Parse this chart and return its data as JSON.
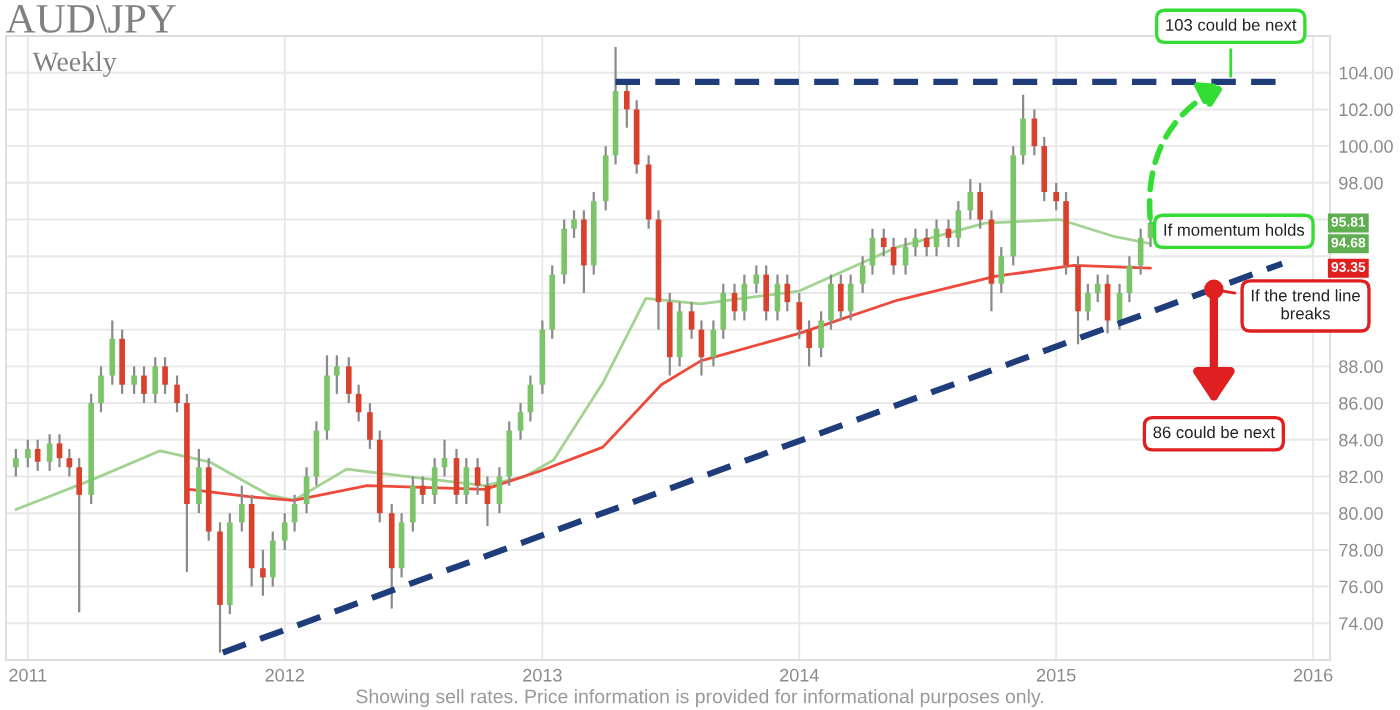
{
  "chart_data": {
    "type": "candlestick",
    "title": "AUD\\JPY",
    "subtitle": "Weekly",
    "x": [
      "2010-12-15",
      "2011-01-01",
      "2011-01-15",
      "2011-02-01",
      "2011-02-15",
      "2011-03-01",
      "2011-03-15",
      "2011-04-01",
      "2011-04-15",
      "2011-05-01",
      "2011-05-15",
      "2011-06-01",
      "2011-06-15",
      "2011-07-01",
      "2011-07-15",
      "2011-08-01",
      "2011-08-15",
      "2011-09-01",
      "2011-09-15",
      "2011-10-01",
      "2011-10-15",
      "2011-11-01",
      "2011-11-15",
      "2011-12-01",
      "2011-12-15",
      "2012-01-01",
      "2012-01-15",
      "2012-02-01",
      "2012-02-15",
      "2012-03-01",
      "2012-03-15",
      "2012-04-01",
      "2012-04-15",
      "2012-05-01",
      "2012-05-15",
      "2012-06-01",
      "2012-06-15",
      "2012-07-01",
      "2012-07-15",
      "2012-08-01",
      "2012-08-15",
      "2012-09-01",
      "2012-09-15",
      "2012-10-01",
      "2012-10-15",
      "2012-11-01",
      "2012-11-15",
      "2012-12-01",
      "2012-12-15",
      "2013-01-01",
      "2013-01-15",
      "2013-02-01",
      "2013-02-15",
      "2013-03-01",
      "2013-03-15",
      "2013-04-01",
      "2013-04-15",
      "2013-05-01",
      "2013-05-15",
      "2013-06-01",
      "2013-06-15",
      "2013-07-01",
      "2013-07-15",
      "2013-08-01",
      "2013-08-15",
      "2013-09-01",
      "2013-09-15",
      "2013-10-01",
      "2013-10-15",
      "2013-11-01",
      "2013-11-15",
      "2013-12-01",
      "2013-12-15",
      "2014-01-01",
      "2014-01-15",
      "2014-02-01",
      "2014-02-15",
      "2014-03-01",
      "2014-03-15",
      "2014-04-01",
      "2014-04-15",
      "2014-05-01",
      "2014-05-15",
      "2014-06-01",
      "2014-06-15",
      "2014-07-01",
      "2014-07-15",
      "2014-08-01",
      "2014-08-15",
      "2014-09-01",
      "2014-09-15",
      "2014-10-01",
      "2014-10-15",
      "2014-11-01",
      "2014-11-15",
      "2014-12-01",
      "2014-12-15",
      "2015-01-01",
      "2015-01-15",
      "2015-02-01",
      "2015-02-15",
      "2015-03-01",
      "2015-03-15",
      "2015-04-01",
      "2015-04-15",
      "2015-05-01",
      "2015-05-15"
    ],
    "ohlc": [
      [
        82.5,
        83.5,
        82.0,
        83.0
      ],
      [
        83.0,
        84.0,
        82.5,
        83.5
      ],
      [
        83.5,
        84.0,
        82.3,
        82.8
      ],
      [
        82.8,
        84.3,
        82.3,
        83.8
      ],
      [
        83.8,
        84.3,
        82.5,
        83.0
      ],
      [
        83.0,
        83.5,
        82.0,
        82.5
      ],
      [
        82.5,
        83.0,
        74.6,
        81.0
      ],
      [
        81.0,
        86.5,
        80.5,
        86.0
      ],
      [
        86.0,
        88.0,
        85.5,
        87.5
      ],
      [
        87.5,
        90.5,
        87.0,
        89.5
      ],
      [
        89.5,
        90.0,
        86.5,
        87.0
      ],
      [
        87.0,
        88.0,
        86.5,
        87.5
      ],
      [
        87.5,
        88.0,
        86.0,
        86.5
      ],
      [
        86.5,
        88.5,
        86.0,
        88.0
      ],
      [
        88.0,
        88.5,
        86.5,
        87.0
      ],
      [
        87.0,
        87.5,
        85.5,
        86.0
      ],
      [
        86.0,
        86.5,
        76.8,
        80.5
      ],
      [
        80.5,
        83.5,
        80.0,
        82.5
      ],
      [
        82.5,
        83.0,
        78.5,
        79.0
      ],
      [
        79.0,
        79.5,
        72.4,
        75.0
      ],
      [
        75.0,
        80.0,
        74.5,
        79.5
      ],
      [
        79.5,
        81.5,
        79.0,
        80.5
      ],
      [
        80.5,
        81.0,
        76.0,
        77.0
      ],
      [
        77.0,
        78.0,
        75.5,
        76.5
      ],
      [
        76.5,
        79.0,
        76.0,
        78.5
      ],
      [
        78.5,
        80.0,
        78.0,
        79.5
      ],
      [
        79.5,
        81.0,
        79.0,
        80.5
      ],
      [
        80.5,
        82.5,
        80.0,
        82.0
      ],
      [
        82.0,
        85.0,
        81.5,
        84.5
      ],
      [
        84.5,
        88.6,
        84.0,
        87.5
      ],
      [
        87.5,
        88.6,
        86.5,
        88.0
      ],
      [
        88.0,
        88.5,
        86.0,
        86.5
      ],
      [
        86.5,
        87.0,
        85.0,
        85.5
      ],
      [
        85.5,
        86.0,
        83.5,
        84.0
      ],
      [
        84.0,
        84.5,
        79.5,
        80.0
      ],
      [
        80.0,
        80.5,
        74.8,
        77.0
      ],
      [
        77.0,
        80.0,
        76.5,
        79.5
      ],
      [
        79.5,
        82.0,
        79.0,
        81.5
      ],
      [
        81.5,
        82.0,
        80.5,
        81.0
      ],
      [
        81.0,
        83.0,
        80.5,
        82.5
      ],
      [
        82.5,
        84.0,
        82.0,
        83.0
      ],
      [
        83.0,
        83.5,
        80.5,
        81.0
      ],
      [
        81.0,
        83.0,
        80.5,
        82.5
      ],
      [
        82.5,
        83.0,
        81.0,
        81.5
      ],
      [
        81.5,
        82.0,
        79.3,
        80.5
      ],
      [
        80.5,
        82.5,
        80.0,
        82.0
      ],
      [
        82.0,
        85.0,
        81.5,
        84.5
      ],
      [
        84.5,
        86.0,
        84.0,
        85.5
      ],
      [
        85.5,
        87.5,
        85.0,
        87.0
      ],
      [
        87.0,
        90.5,
        86.5,
        90.0
      ],
      [
        90.0,
        93.5,
        89.5,
        93.0
      ],
      [
        93.0,
        96.0,
        92.5,
        95.5
      ],
      [
        95.5,
        96.5,
        95.0,
        96.0
      ],
      [
        96.0,
        96.5,
        92.0,
        93.5
      ],
      [
        93.5,
        97.5,
        93.0,
        97.0
      ],
      [
        97.0,
        100.0,
        96.5,
        99.5
      ],
      [
        99.5,
        105.4,
        99.0,
        103.0
      ],
      [
        103.0,
        103.5,
        101.0,
        102.0
      ],
      [
        102.0,
        102.5,
        98.5,
        99.0
      ],
      [
        99.0,
        99.5,
        95.5,
        96.0
      ],
      [
        96.0,
        96.5,
        90.0,
        91.5
      ],
      [
        91.5,
        92.0,
        87.5,
        88.5
      ],
      [
        88.5,
        91.5,
        88.0,
        91.0
      ],
      [
        91.0,
        91.5,
        89.5,
        90.0
      ],
      [
        90.0,
        90.5,
        87.5,
        88.5
      ],
      [
        88.5,
        90.5,
        88.0,
        90.0
      ],
      [
        90.0,
        92.5,
        89.5,
        92.0
      ],
      [
        92.0,
        92.5,
        90.5,
        91.0
      ],
      [
        91.0,
        93.0,
        90.5,
        92.5
      ],
      [
        92.5,
        93.5,
        92.0,
        93.0
      ],
      [
        93.0,
        93.5,
        90.5,
        91.0
      ],
      [
        91.0,
        93.0,
        90.5,
        92.5
      ],
      [
        92.5,
        93.0,
        91.0,
        91.5
      ],
      [
        91.5,
        92.0,
        89.5,
        90.0
      ],
      [
        90.0,
        90.5,
        88.0,
        89.0
      ],
      [
        89.0,
        91.0,
        88.5,
        90.5
      ],
      [
        90.5,
        93.0,
        90.0,
        92.5
      ],
      [
        92.5,
        93.0,
        90.5,
        91.0
      ],
      [
        91.0,
        93.0,
        90.5,
        92.5
      ],
      [
        92.5,
        94.0,
        92.0,
        93.5
      ],
      [
        93.5,
        95.5,
        93.0,
        95.0
      ],
      [
        95.0,
        95.5,
        94.0,
        94.5
      ],
      [
        94.5,
        95.0,
        93.0,
        93.5
      ],
      [
        93.5,
        95.0,
        93.0,
        94.5
      ],
      [
        94.5,
        95.5,
        94.0,
        95.0
      ],
      [
        95.0,
        95.5,
        94.0,
        94.5
      ],
      [
        94.5,
        96.0,
        94.0,
        95.5
      ],
      [
        95.5,
        96.0,
        94.5,
        95.0
      ],
      [
        95.0,
        97.0,
        94.5,
        96.5
      ],
      [
        96.5,
        98.2,
        96.0,
        97.5
      ],
      [
        97.5,
        98.0,
        95.5,
        96.0
      ],
      [
        96.0,
        96.5,
        91.0,
        92.5
      ],
      [
        92.5,
        94.5,
        92.0,
        94.0
      ],
      [
        94.0,
        100.0,
        93.5,
        99.5
      ],
      [
        99.5,
        102.8,
        99.0,
        101.5
      ],
      [
        101.5,
        102.0,
        99.5,
        100.0
      ],
      [
        100.0,
        100.5,
        97.0,
        97.5
      ],
      [
        97.5,
        98.0,
        96.5,
        97.0
      ],
      [
        97.0,
        97.5,
        93.0,
        93.5
      ],
      [
        93.5,
        94.0,
        89.2,
        91.0
      ],
      [
        91.0,
        92.5,
        90.5,
        92.0
      ],
      [
        92.0,
        93.0,
        91.5,
        92.5
      ],
      [
        92.5,
        93.0,
        89.8,
        90.5
      ],
      [
        90.5,
        92.5,
        90.0,
        92.0
      ],
      [
        92.0,
        94.0,
        91.5,
        93.5
      ],
      [
        93.5,
        95.5,
        93.0,
        95.0
      ],
      [
        95.0,
        96.0,
        94.5,
        95.81
      ]
    ],
    "colors": [
      "#7cc46a",
      "#7cc46a",
      "#d9412c",
      "#7cc46a",
      "#d9412c",
      "#d9412c",
      "#d9412c",
      "#7cc46a",
      "#7cc46a",
      "#7cc46a",
      "#d9412c",
      "#7cc46a",
      "#d9412c",
      "#7cc46a",
      "#d9412c",
      "#d9412c",
      "#d9412c",
      "#7cc46a",
      "#d9412c",
      "#d9412c",
      "#7cc46a",
      "#7cc46a",
      "#d9412c",
      "#d9412c",
      "#7cc46a",
      "#7cc46a",
      "#7cc46a",
      "#7cc46a",
      "#7cc46a",
      "#7cc46a",
      "#7cc46a",
      "#d9412c",
      "#d9412c",
      "#d9412c",
      "#d9412c",
      "#d9412c",
      "#7cc46a",
      "#7cc46a",
      "#d9412c",
      "#7cc46a",
      "#7cc46a",
      "#d9412c",
      "#7cc46a",
      "#d9412c",
      "#d9412c",
      "#7cc46a",
      "#7cc46a",
      "#7cc46a",
      "#7cc46a",
      "#7cc46a",
      "#7cc46a",
      "#7cc46a",
      "#7cc46a",
      "#d9412c",
      "#7cc46a",
      "#7cc46a",
      "#7cc46a",
      "#d9412c",
      "#d9412c",
      "#d9412c",
      "#d9412c",
      "#d9412c",
      "#7cc46a",
      "#d9412c",
      "#d9412c",
      "#7cc46a",
      "#7cc46a",
      "#d9412c",
      "#7cc46a",
      "#7cc46a",
      "#d9412c",
      "#7cc46a",
      "#d9412c",
      "#d9412c",
      "#d9412c",
      "#7cc46a",
      "#7cc46a",
      "#d9412c",
      "#7cc46a",
      "#7cc46a",
      "#7cc46a",
      "#d9412c",
      "#d9412c",
      "#7cc46a",
      "#7cc46a",
      "#d9412c",
      "#7cc46a",
      "#d9412c",
      "#7cc46a",
      "#7cc46a",
      "#d9412c",
      "#d9412c",
      "#7cc46a",
      "#7cc46a",
      "#7cc46a",
      "#d9412c",
      "#d9412c",
      "#d9412c",
      "#d9412c",
      "#d9412c",
      "#7cc46a",
      "#7cc46a",
      "#d9412c",
      "#7cc46a",
      "#7cc46a",
      "#7cc46a",
      "#7cc46a"
    ],
    "series": [
      {
        "type": "line",
        "color": "#a3d393",
        "x": [
          "2010-12-15",
          "2011-04-01",
          "2011-07-08",
          "2011-09-16",
          "2011-12-09",
          "2012-01-14",
          "2012-03-29",
          "2012-06-21",
          "2012-10-12",
          "2012-12-07",
          "2013-01-17",
          "2013-03-28",
          "2013-05-28",
          "2013-08-14",
          "2014-01-01",
          "2014-05-20",
          "2014-09-22",
          "2015-01-06",
          "2015-03-22",
          "2015-05-15"
        ],
        "values": [
          80.2,
          81.8,
          83.4,
          82.8,
          81.0,
          80.7,
          82.4,
          82.0,
          81.5,
          82.0,
          82.9,
          87.1,
          91.7,
          91.4,
          92.1,
          94.5,
          95.8,
          96.0,
          95.1,
          94.68
        ]
      },
      {
        "type": "line",
        "color": "#ee4a3c",
        "x": [
          "2011-08-19",
          "2011-11-11",
          "2012-01-14",
          "2012-04-27",
          "2012-10-12",
          "2012-12-29",
          "2013-03-28",
          "2013-06-19",
          "2013-08-14",
          "2014-01-01",
          "2014-05-20",
          "2014-10-06",
          "2015-01-26",
          "2015-05-15"
        ],
        "values": [
          81.3,
          80.9,
          80.7,
          81.5,
          81.3,
          82.3,
          83.6,
          87.0,
          88.3,
          89.8,
          91.6,
          92.9,
          93.5,
          93.35
        ]
      },
      {
        "type": "line",
        "color": "#1f3d7a",
        "line_style": "dashed",
        "x": [
          "2013-04-15",
          "2015-11-18"
        ],
        "values": [
          103.5,
          103.5
        ]
      },
      {
        "type": "line",
        "color": "#1f3d7a",
        "line_style": "dashed",
        "x": [
          "2011-10-05",
          "2015-11-18"
        ],
        "values": [
          72.4,
          93.6
        ]
      }
    ],
    "annotations": [
      {
        "text": "103 could be next",
        "x": "2015-09-06",
        "y": 103.5
      },
      {
        "text": "If momentum holds",
        "x": "2015-05-15",
        "y": 95.81
      },
      {
        "text": "If the trend line\nbreaks",
        "x": "2015-08-13",
        "y": 92.2
      },
      "86 could be next",
      {
        "text": "95.81",
        "x": "2016-02-20",
        "y": 95.81
      },
      {
        "text": "94.68",
        "x": "2016-02-20",
        "y": 94.68
      },
      {
        "text": "93.35",
        "x": "2016-02-20",
        "y": 93.35
      },
      "Showing sell rates. Price information is provided for informational purposes only."
    ],
    "xlim": [
      "2010-12-01",
      "2016-01-25"
    ],
    "xticks": [
      "2011",
      "2012",
      "2013",
      "2014",
      "2015",
      "2016"
    ],
    "ylim": [
      72.0,
      106.0
    ],
    "yticks": [
      {
        "value": 74,
        "label": "74.00"
      },
      {
        "value": 76,
        "label": "76.00"
      },
      {
        "value": 78,
        "label": "78.00"
      },
      {
        "value": 80,
        "label": "80.00"
      },
      {
        "value": 82,
        "label": "82.00"
      },
      {
        "value": 84,
        "label": "84.00"
      },
      {
        "value": 86,
        "label": "86.00"
      },
      {
        "value": 88,
        "label": "88.00"
      },
      {
        "value": 90,
        "label": null
      },
      {
        "value": 92,
        "label": null
      },
      {
        "value": 94,
        "label": null
      },
      {
        "value": 96,
        "label": null
      },
      {
        "value": 98,
        "label": "98.00"
      },
      {
        "value": 100,
        "label": "100.00"
      },
      {
        "value": 102,
        "label": "102.00"
      },
      {
        "value": 104,
        "label": "104.00"
      }
    ],
    "grid": true
  }
}
